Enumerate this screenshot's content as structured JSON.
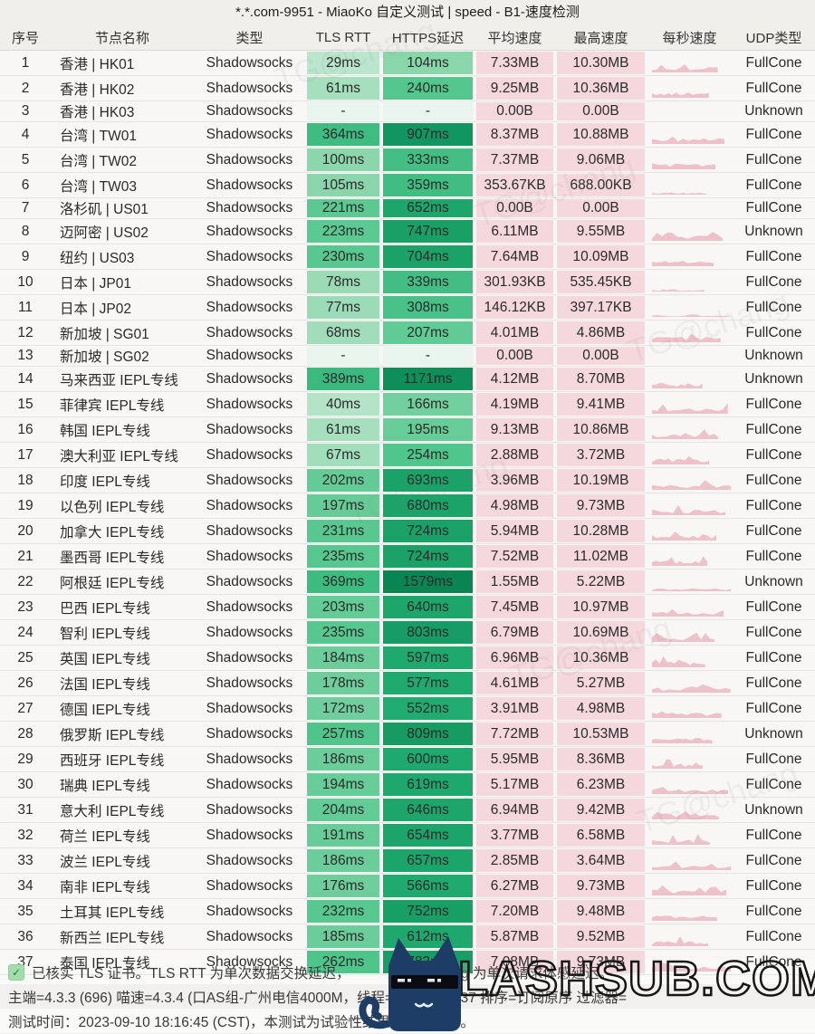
{
  "title": "*.*.com-9951 - MiaoKo 自定义测试 | speed - B1-速度检测",
  "table": {
    "headers": [
      "序号",
      "节点名称",
      "类型",
      "TLS RTT",
      "HTTPS延迟",
      "平均速度",
      "最高速度",
      "每秒速度",
      "UDP类型"
    ],
    "rows": [
      {
        "no": 1,
        "name": "香港 | HK01",
        "type": "Shadowsocks",
        "tls": "29ms",
        "tls_ms": 29,
        "https": "104ms",
        "https_ms": 104,
        "avg": "7.33MB",
        "max": "10.30MB",
        "udp": "FullCone",
        "spark": 1
      },
      {
        "no": 2,
        "name": "香港 | HK02",
        "type": "Shadowsocks",
        "tls": "61ms",
        "tls_ms": 61,
        "https": "240ms",
        "https_ms": 240,
        "avg": "9.25MB",
        "max": "10.36MB",
        "udp": "FullCone",
        "spark": 1
      },
      {
        "no": 3,
        "name": "香港 | HK03",
        "type": "Shadowsocks",
        "tls": "-",
        "tls_ms": null,
        "https": "-",
        "https_ms": null,
        "avg": "0.00B",
        "max": "0.00B",
        "udp": "Unknown",
        "spark": 0
      },
      {
        "no": 4,
        "name": "台湾 | TW01",
        "type": "Shadowsocks",
        "tls": "364ms",
        "tls_ms": 364,
        "https": "907ms",
        "https_ms": 907,
        "avg": "8.37MB",
        "max": "10.88MB",
        "udp": "FullCone",
        "spark": 1
      },
      {
        "no": 5,
        "name": "台湾 | TW02",
        "type": "Shadowsocks",
        "tls": "100ms",
        "tls_ms": 100,
        "https": "333ms",
        "https_ms": 333,
        "avg": "7.37MB",
        "max": "9.06MB",
        "udp": "FullCone",
        "spark": 1
      },
      {
        "no": 6,
        "name": "台湾 | TW03",
        "type": "Shadowsocks",
        "tls": "105ms",
        "tls_ms": 105,
        "https": "359ms",
        "https_ms": 359,
        "avg": "353.67KB",
        "max": "688.00KB",
        "udp": "FullCone",
        "spark": 0.35
      },
      {
        "no": 7,
        "name": "洛杉矶 | US01",
        "type": "Shadowsocks",
        "tls": "221ms",
        "tls_ms": 221,
        "https": "652ms",
        "https_ms": 652,
        "avg": "0.00B",
        "max": "0.00B",
        "udp": "FullCone",
        "spark": 0
      },
      {
        "no": 8,
        "name": "迈阿密 | US02",
        "type": "Shadowsocks",
        "tls": "223ms",
        "tls_ms": 223,
        "https": "747ms",
        "https_ms": 747,
        "avg": "6.11MB",
        "max": "9.55MB",
        "udp": "Unknown",
        "spark": 1
      },
      {
        "no": 9,
        "name": "纽约 | US03",
        "type": "Shadowsocks",
        "tls": "230ms",
        "tls_ms": 230,
        "https": "704ms",
        "https_ms": 704,
        "avg": "7.64MB",
        "max": "10.09MB",
        "udp": "FullCone",
        "spark": 1
      },
      {
        "no": 10,
        "name": "日本 | JP01",
        "type": "Shadowsocks",
        "tls": "78ms",
        "tls_ms": 78,
        "https": "339ms",
        "https_ms": 339,
        "avg": "301.93KB",
        "max": "535.45KB",
        "udp": "FullCone",
        "spark": 0.3
      },
      {
        "no": 11,
        "name": "日本 | JP02",
        "type": "Shadowsocks",
        "tls": "77ms",
        "tls_ms": 77,
        "https": "308ms",
        "https_ms": 308,
        "avg": "146.12KB",
        "max": "397.17KB",
        "udp": "FullCone",
        "spark": 0.25
      },
      {
        "no": 12,
        "name": "新加坡 | SG01",
        "type": "Shadowsocks",
        "tls": "68ms",
        "tls_ms": 68,
        "https": "207ms",
        "https_ms": 207,
        "avg": "4.01MB",
        "max": "4.86MB",
        "udp": "FullCone",
        "spark": 1
      },
      {
        "no": 13,
        "name": "新加坡 | SG02",
        "type": "Shadowsocks",
        "tls": "-",
        "tls_ms": null,
        "https": "-",
        "https_ms": null,
        "avg": "0.00B",
        "max": "0.00B",
        "udp": "Unknown",
        "spark": 0
      },
      {
        "no": 14,
        "name": "马来西亚 IEPL专线",
        "type": "Shadowsocks",
        "tls": "389ms",
        "tls_ms": 389,
        "https": "1171ms",
        "https_ms": 1171,
        "avg": "4.12MB",
        "max": "8.70MB",
        "udp": "Unknown",
        "spark": 1
      },
      {
        "no": 15,
        "name": "菲律宾 IEPL专线",
        "type": "Shadowsocks",
        "tls": "40ms",
        "tls_ms": 40,
        "https": "166ms",
        "https_ms": 166,
        "avg": "4.19MB",
        "max": "9.41MB",
        "udp": "FullCone",
        "spark": 1
      },
      {
        "no": 16,
        "name": "韩国 IEPL专线",
        "type": "Shadowsocks",
        "tls": "61ms",
        "tls_ms": 61,
        "https": "195ms",
        "https_ms": 195,
        "avg": "9.13MB",
        "max": "10.86MB",
        "udp": "FullCone",
        "spark": 1
      },
      {
        "no": 17,
        "name": "澳大利亚 IEPL专线",
        "type": "Shadowsocks",
        "tls": "67ms",
        "tls_ms": 67,
        "https": "254ms",
        "https_ms": 254,
        "avg": "2.88MB",
        "max": "3.72MB",
        "udp": "FullCone",
        "spark": 1
      },
      {
        "no": 18,
        "name": "印度 IEPL专线",
        "type": "Shadowsocks",
        "tls": "202ms",
        "tls_ms": 202,
        "https": "693ms",
        "https_ms": 693,
        "avg": "3.96MB",
        "max": "10.19MB",
        "udp": "FullCone",
        "spark": 1
      },
      {
        "no": 19,
        "name": "以色列 IEPL专线",
        "type": "Shadowsocks",
        "tls": "197ms",
        "tls_ms": 197,
        "https": "680ms",
        "https_ms": 680,
        "avg": "4.98MB",
        "max": "9.73MB",
        "udp": "FullCone",
        "spark": 1
      },
      {
        "no": 20,
        "name": "加拿大 IEPL专线",
        "type": "Shadowsocks",
        "tls": "231ms",
        "tls_ms": 231,
        "https": "724ms",
        "https_ms": 724,
        "avg": "5.94MB",
        "max": "10.28MB",
        "udp": "FullCone",
        "spark": 1
      },
      {
        "no": 21,
        "name": "墨西哥 IEPL专线",
        "type": "Shadowsocks",
        "tls": "235ms",
        "tls_ms": 235,
        "https": "724ms",
        "https_ms": 724,
        "avg": "7.52MB",
        "max": "11.02MB",
        "udp": "FullCone",
        "spark": 1
      },
      {
        "no": 22,
        "name": "阿根廷 IEPL专线",
        "type": "Shadowsocks",
        "tls": "369ms",
        "tls_ms": 369,
        "https": "1579ms",
        "https_ms": 1579,
        "avg": "1.55MB",
        "max": "5.22MB",
        "udp": "Unknown",
        "spark": 0.6
      },
      {
        "no": 23,
        "name": "巴西 IEPL专线",
        "type": "Shadowsocks",
        "tls": "203ms",
        "tls_ms": 203,
        "https": "640ms",
        "https_ms": 640,
        "avg": "7.45MB",
        "max": "10.97MB",
        "udp": "FullCone",
        "spark": 1
      },
      {
        "no": 24,
        "name": "智利 IEPL专线",
        "type": "Shadowsocks",
        "tls": "235ms",
        "tls_ms": 235,
        "https": "803ms",
        "https_ms": 803,
        "avg": "6.79MB",
        "max": "10.69MB",
        "udp": "FullCone",
        "spark": 1
      },
      {
        "no": 25,
        "name": "英国 IEPL专线",
        "type": "Shadowsocks",
        "tls": "184ms",
        "tls_ms": 184,
        "https": "597ms",
        "https_ms": 597,
        "avg": "6.96MB",
        "max": "10.36MB",
        "udp": "FullCone",
        "spark": 1
      },
      {
        "no": 26,
        "name": "法国 IEPL专线",
        "type": "Shadowsocks",
        "tls": "178ms",
        "tls_ms": 178,
        "https": "577ms",
        "https_ms": 577,
        "avg": "4.61MB",
        "max": "5.27MB",
        "udp": "FullCone",
        "spark": 1
      },
      {
        "no": 27,
        "name": "德国 IEPL专线",
        "type": "Shadowsocks",
        "tls": "172ms",
        "tls_ms": 172,
        "https": "552ms",
        "https_ms": 552,
        "avg": "3.91MB",
        "max": "4.98MB",
        "udp": "FullCone",
        "spark": 1
      },
      {
        "no": 28,
        "name": "俄罗斯 IEPL专线",
        "type": "Shadowsocks",
        "tls": "257ms",
        "tls_ms": 257,
        "https": "809ms",
        "https_ms": 809,
        "avg": "7.72MB",
        "max": "10.53MB",
        "udp": "Unknown",
        "spark": 1
      },
      {
        "no": 29,
        "name": "西班牙 IEPL专线",
        "type": "Shadowsocks",
        "tls": "186ms",
        "tls_ms": 186,
        "https": "600ms",
        "https_ms": 600,
        "avg": "5.95MB",
        "max": "8.36MB",
        "udp": "FullCone",
        "spark": 1
      },
      {
        "no": 30,
        "name": "瑞典 IEPL专线",
        "type": "Shadowsocks",
        "tls": "194ms",
        "tls_ms": 194,
        "https": "619ms",
        "https_ms": 619,
        "avg": "5.17MB",
        "max": "6.23MB",
        "udp": "FullCone",
        "spark": 1
      },
      {
        "no": 31,
        "name": "意大利 IEPL专线",
        "type": "Shadowsocks",
        "tls": "204ms",
        "tls_ms": 204,
        "https": "646ms",
        "https_ms": 646,
        "avg": "6.94MB",
        "max": "9.42MB",
        "udp": "Unknown",
        "spark": 1
      },
      {
        "no": 32,
        "name": "荷兰 IEPL专线",
        "type": "Shadowsocks",
        "tls": "191ms",
        "tls_ms": 191,
        "https": "654ms",
        "https_ms": 654,
        "avg": "3.77MB",
        "max": "6.58MB",
        "udp": "FullCone",
        "spark": 1
      },
      {
        "no": 33,
        "name": "波兰 IEPL专线",
        "type": "Shadowsocks",
        "tls": "186ms",
        "tls_ms": 186,
        "https": "657ms",
        "https_ms": 657,
        "avg": "2.85MB",
        "max": "3.64MB",
        "udp": "FullCone",
        "spark": 1
      },
      {
        "no": 34,
        "name": "南非 IEPL专线",
        "type": "Shadowsocks",
        "tls": "176ms",
        "tls_ms": 176,
        "https": "566ms",
        "https_ms": 566,
        "avg": "6.27MB",
        "max": "9.73MB",
        "udp": "FullCone",
        "spark": 1
      },
      {
        "no": 35,
        "name": "土耳其 IEPL专线",
        "type": "Shadowsocks",
        "tls": "232ms",
        "tls_ms": 232,
        "https": "752ms",
        "https_ms": 752,
        "avg": "7.20MB",
        "max": "9.48MB",
        "udp": "FullCone",
        "spark": 1
      },
      {
        "no": 36,
        "name": "新西兰 IEPL专线",
        "type": "Shadowsocks",
        "tls": "185ms",
        "tls_ms": 185,
        "https": "612ms",
        "https_ms": 612,
        "avg": "5.87MB",
        "max": "9.52MB",
        "udp": "FullCone",
        "spark": 1
      },
      {
        "no": 37,
        "name": "泰国 IEPL专线",
        "type": "Shadowsocks",
        "tls": "262ms",
        "tls_ms": 262,
        "https": "783ms",
        "https_ms": 783,
        "avg": "7.08MB",
        "max": "9.73MB",
        "udp": "FullCone",
        "spark": 1
      }
    ]
  },
  "footer": {
    "line1_left": "已核实 TLS 证书。TLS RTT 为单次数据交换延迟，",
    "line1_right": "Ping 为单次请求体感延迟。",
    "line2": "主端=4.3.3 (696) 喵速=4.3.4 (口AS组-广州电信4000M，线程=4 概要=37/37 排序=订阅原序 过滤器=",
    "line3": "测试时间：2023-09-10 18:16:45 (CST)，本测试为试验性结果，仅供参考。"
  },
  "watermark": {
    "brand": "CLASHSUB.COM",
    "diagonal": "TG@chang"
  },
  "colors": {
    "latency_low": "#cdedd9",
    "latency_high": "#088452",
    "latency_empty": "#e8f5ee",
    "speed_cell_bg": "#f5d8dd",
    "sparkline": "#ecb9c3",
    "check_green": "#a5dcae"
  }
}
